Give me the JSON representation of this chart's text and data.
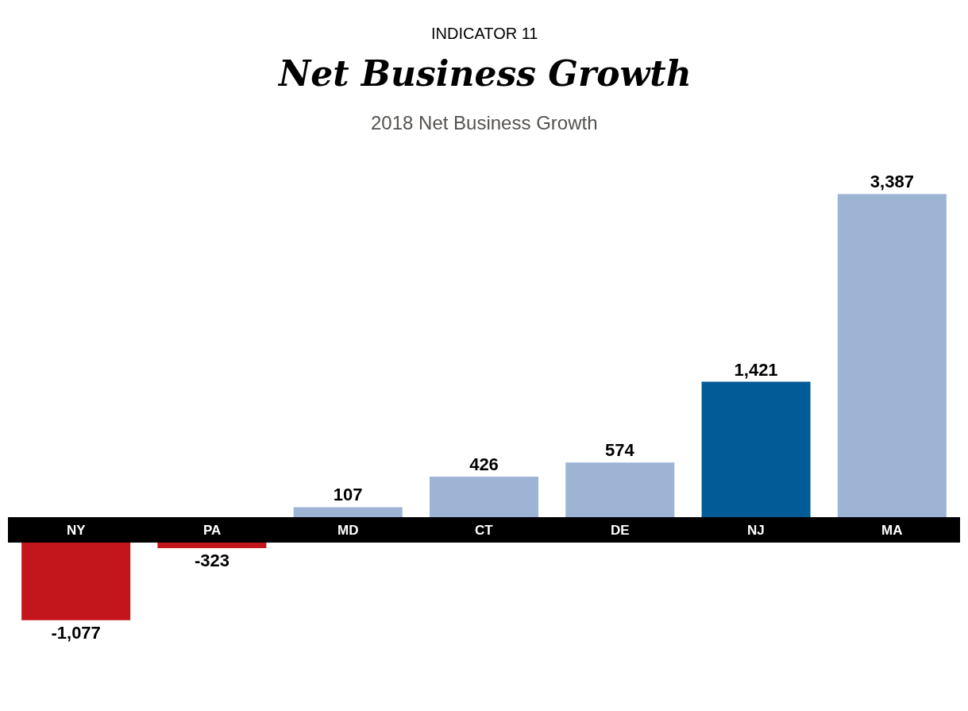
{
  "chart_data": {
    "type": "bar",
    "title": "Net Business Growth",
    "subtitle": "2018 Net Business Growth",
    "annotations": [
      "INDICATOR 11"
    ],
    "categories": [
      "NY",
      "PA",
      "MD",
      "CT",
      "DE",
      "NJ",
      "MA"
    ],
    "values": [
      -1077,
      -323,
      107,
      426,
      574,
      1421,
      3387
    ],
    "colors": [
      "#c3161c",
      "#c3161c",
      "#9db4d4",
      "#9db4d4",
      "#9db4d4",
      "#005b96",
      "#9db4d4"
    ],
    "value_labels": [
      "-1,077",
      "-323",
      "107",
      "426",
      "574",
      "1,421",
      "3,387"
    ],
    "legend": false
  }
}
